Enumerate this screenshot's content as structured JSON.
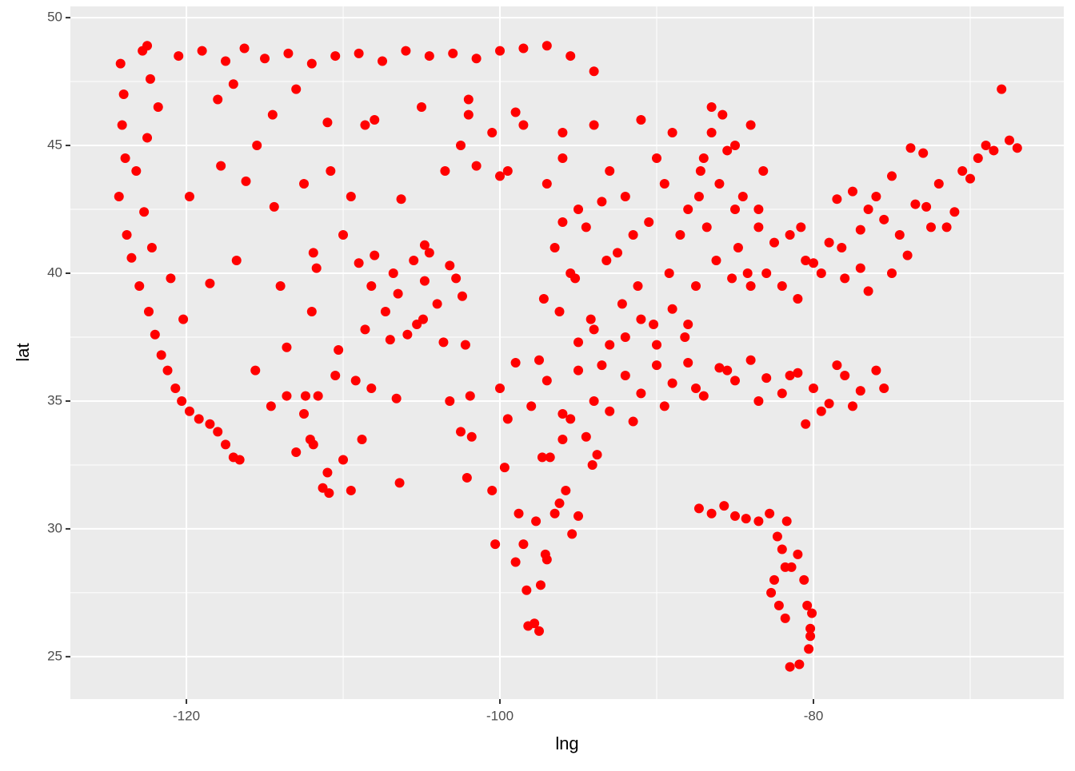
{
  "chart_data": {
    "type": "scatter",
    "xlabel": "lng",
    "ylabel": "lat",
    "color": "#ff0000",
    "grid": true,
    "xlim": [
      -127.4,
      -64.03
    ],
    "ylim": [
      23.34,
      50.44
    ],
    "xticks": [
      -120,
      -100,
      -80
    ],
    "yticks": [
      25,
      30,
      35,
      40,
      45,
      50
    ],
    "x_minor_grid": [
      -110,
      -90,
      -70
    ],
    "y_minor_grid": [
      27.5,
      32.5,
      37.5,
      42.5,
      47.5
    ],
    "x": [
      -124.2,
      -124.0,
      -124.1,
      -123.9,
      -124.3,
      -123.8,
      -123.5,
      -123.0,
      -122.4,
      -122.0,
      -121.6,
      -121.2,
      -120.7,
      -120.3,
      -119.8,
      -119.2,
      -118.5,
      -118.0,
      -117.5,
      -117.0,
      -116.6,
      -122.8,
      -122.3,
      -121.8,
      -122.5,
      -123.2,
      -122.7,
      -122.2,
      -121.0,
      -120.2,
      -122.5,
      -120.5,
      -119.0,
      -117.5,
      -116.3,
      -115.0,
      -113.5,
      -112.0,
      -110.5,
      -109.0,
      -107.5,
      -106.0,
      -104.5,
      -103.0,
      -101.5,
      -100.0,
      -98.5,
      -97.0,
      -95.5,
      -94.0,
      -118.0,
      -114.5,
      -111.0,
      -108.0,
      -105.0,
      -102.0,
      -99.0,
      -96.0,
      -117.0,
      -113.0,
      -116.2,
      -114.4,
      -112.5,
      -111.9,
      -111.7,
      -113.6,
      -110.8,
      -108.6,
      -106.3,
      -104.8,
      -117.8,
      -115.5,
      -119.8,
      -118.5,
      -116.8,
      -112.0,
      -110.0,
      -109.5,
      -114.0,
      -115.6,
      -109.0,
      -108.2,
      -107.3,
      -106.5,
      -105.5,
      -104.8,
      -104.0,
      -103.2,
      -102.4,
      -108.6,
      -107.0,
      -105.9,
      -104.9,
      -103.6,
      -102.2,
      -108.0,
      -106.8,
      -105.3,
      -104.5,
      -102.8,
      -112.1,
      -111.9,
      -111.0,
      -110.9,
      -110.0,
      -109.5,
      -108.8,
      -112.4,
      -113.6,
      -114.6,
      -111.6,
      -112.5,
      -110.5,
      -113.0,
      -111.3,
      -109.2,
      -108.2,
      -106.6,
      -106.4,
      -110.3,
      -103.2,
      -102.5,
      -101.9,
      -101.8,
      -102.1,
      -100.5,
      -100.3,
      -99.7,
      -98.5,
      -98.3,
      -97.7,
      -97.3,
      -96.8,
      -95.4,
      -95.0,
      -97.4,
      -97.5,
      -97.8,
      -98.2,
      -99.0,
      -96.0,
      -94.5,
      -94.1,
      -93.8,
      -95.8,
      -96.5,
      -97.0,
      -98.8,
      -97.1,
      -96.2,
      -100.0,
      -99.0,
      -98.0,
      -97.0,
      -96.0,
      -95.0,
      -94.0,
      -93.0,
      -92.0,
      -91.0,
      -90.0,
      -89.0,
      -88.0,
      -87.0,
      -86.0,
      -85.0,
      -84.0,
      -83.0,
      -82.0,
      -81.0,
      -80.0,
      -79.0,
      -78.0,
      -77.0,
      -76.0,
      -75.5,
      -99.5,
      -97.5,
      -95.5,
      -93.5,
      -91.5,
      -89.5,
      -87.5,
      -85.5,
      -83.5,
      -81.5,
      -79.5,
      -77.5,
      -80.5,
      -78.5,
      -97.0,
      -96.0,
      -95.0,
      -94.0,
      -93.0,
      -92.0,
      -91.0,
      -90.0,
      -89.0,
      -88.0,
      -87.2,
      -96.5,
      -95.5,
      -94.5,
      -93.5,
      -92.5,
      -91.5,
      -90.5,
      -89.5,
      -88.5,
      -87.5,
      -97.2,
      -96.2,
      -95.2,
      -94.2,
      -93.2,
      -92.2,
      -91.2,
      -90.2,
      -89.2,
      -88.2,
      -94.0,
      -93.0,
      -92.0,
      -91.0,
      -90.0,
      -89.0,
      -88.0,
      -95.0,
      -96.0,
      -87.0,
      -86.5,
      -86.0,
      -85.5,
      -85.0,
      -84.5,
      -84.0,
      -83.5,
      -83.2,
      -86.8,
      -86.2,
      -85.2,
      -84.8,
      -84.2,
      -85.8,
      -86.5,
      -84.0,
      -83.5,
      -87.3,
      -85.0,
      -83.0,
      -82.0,
      -81.5,
      -80.5,
      -80.0,
      -79.0,
      -78.5,
      -78.0,
      -77.5,
      -77.0,
      -76.5,
      -76.0,
      -75.5,
      -75.0,
      -74.5,
      -74.0,
      -73.5,
      -73.0,
      -72.5,
      -72.0,
      -71.5,
      -71.0,
      -70.5,
      -70.0,
      -69.5,
      -69.0,
      -68.5,
      -68.0,
      -67.5,
      -67.0,
      -82.5,
      -81.0,
      -79.5,
      -77.0,
      -75.0,
      -73.8,
      -76.5,
      -78.2,
      -80.8,
      -72.8,
      -103.5,
      -102.5,
      -101.5,
      -100.5,
      -99.5,
      -98.5,
      -102.0,
      -100.0,
      -87.3,
      -86.5,
      -85.7,
      -85.0,
      -84.3,
      -83.5,
      -82.8,
      -82.3,
      -81.7,
      -82.0,
      -81.8,
      -82.5,
      -82.7,
      -81.4,
      -81.0,
      -80.6,
      -80.4,
      -80.2,
      -80.1,
      -80.2,
      -81.8,
      -81.5,
      -82.2,
      -80.9,
      -80.3
    ],
    "values": [
      48.2,
      47.0,
      45.8,
      44.5,
      43.0,
      41.5,
      40.6,
      39.5,
      38.5,
      37.6,
      36.8,
      36.2,
      35.5,
      35.0,
      34.6,
      34.3,
      34.1,
      33.8,
      33.3,
      32.8,
      32.7,
      48.7,
      47.6,
      46.5,
      45.3,
      44.0,
      42.4,
      41.0,
      39.8,
      38.2,
      48.9,
      48.5,
      48.7,
      48.3,
      48.8,
      48.4,
      48.6,
      48.2,
      48.5,
      48.6,
      48.3,
      48.7,
      48.5,
      48.6,
      48.4,
      48.7,
      48.8,
      48.9,
      48.5,
      47.9,
      46.8,
      46.2,
      45.9,
      46.0,
      46.5,
      46.8,
      46.3,
      45.5,
      47.4,
      47.2,
      43.6,
      42.6,
      43.5,
      40.8,
      40.2,
      37.1,
      44.0,
      45.8,
      42.9,
      41.1,
      44.2,
      45.0,
      43.0,
      39.6,
      40.5,
      38.5,
      41.5,
      43.0,
      39.5,
      36.2,
      40.4,
      39.5,
      38.5,
      39.2,
      40.5,
      39.7,
      38.8,
      40.3,
      39.1,
      37.8,
      37.4,
      37.6,
      38.2,
      37.3,
      37.2,
      40.7,
      40.0,
      38.0,
      40.8,
      39.8,
      33.5,
      33.3,
      32.2,
      31.4,
      32.7,
      31.5,
      33.5,
      35.2,
      35.2,
      34.8,
      35.2,
      34.5,
      36.0,
      33.0,
      31.6,
      35.8,
      35.5,
      35.1,
      31.8,
      37.0,
      35.0,
      33.8,
      35.2,
      33.6,
      32.0,
      31.5,
      29.4,
      32.4,
      29.4,
      27.6,
      30.3,
      32.8,
      32.8,
      29.8,
      30.5,
      27.8,
      26.0,
      26.3,
      26.2,
      28.7,
      33.5,
      33.6,
      32.5,
      32.9,
      31.5,
      30.6,
      28.8,
      30.6,
      29.0,
      31.0,
      35.5,
      36.5,
      34.8,
      35.8,
      34.5,
      36.2,
      35.0,
      34.6,
      36.0,
      35.3,
      36.4,
      35.7,
      36.5,
      35.2,
      36.3,
      35.8,
      36.6,
      35.9,
      35.3,
      36.1,
      35.5,
      34.9,
      36.0,
      35.4,
      36.2,
      35.5,
      34.3,
      36.6,
      34.3,
      36.4,
      34.2,
      34.8,
      35.5,
      36.2,
      35.0,
      36.0,
      34.6,
      34.8,
      34.1,
      36.4,
      43.5,
      44.5,
      42.5,
      45.8,
      44.0,
      43.0,
      46.0,
      44.5,
      45.5,
      42.5,
      44.0,
      41.0,
      40.0,
      41.8,
      42.8,
      40.8,
      41.5,
      42.0,
      43.5,
      41.5,
      39.5,
      39.0,
      38.5,
      39.8,
      38.2,
      40.5,
      38.8,
      39.5,
      38.0,
      40.0,
      37.5,
      37.8,
      37.2,
      37.5,
      38.2,
      37.2,
      38.6,
      38.0,
      37.3,
      42.0,
      44.5,
      45.5,
      43.5,
      44.8,
      42.5,
      43.0,
      45.8,
      42.5,
      44.0,
      41.8,
      40.5,
      39.8,
      41.0,
      40.0,
      46.2,
      46.5,
      39.5,
      41.8,
      43.0,
      45.0,
      40.0,
      39.5,
      41.5,
      40.5,
      40.4,
      41.2,
      42.9,
      39.8,
      43.2,
      40.2,
      39.3,
      43.0,
      42.1,
      40.0,
      41.5,
      40.7,
      42.7,
      44.7,
      41.8,
      43.5,
      41.8,
      42.4,
      44.0,
      43.7,
      44.5,
      45.0,
      44.8,
      47.2,
      45.2,
      44.9,
      41.2,
      39.0,
      40.0,
      41.7,
      43.8,
      44.9,
      42.5,
      41.0,
      41.8,
      42.6,
      44.0,
      45.0,
      44.2,
      45.5,
      44.0,
      45.8,
      46.2,
      43.8,
      30.8,
      30.6,
      30.9,
      30.5,
      30.4,
      30.3,
      30.6,
      29.7,
      30.3,
      29.2,
      28.5,
      28.0,
      27.5,
      28.5,
      29.0,
      28.0,
      27.0,
      26.1,
      26.7,
      25.8,
      26.5,
      24.6,
      27.0,
      24.7,
      25.3
    ]
  }
}
